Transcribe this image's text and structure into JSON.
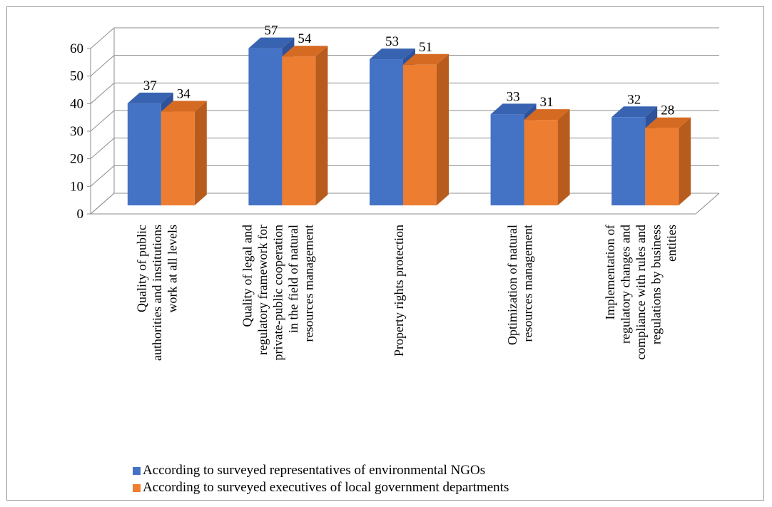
{
  "chart_data": {
    "type": "bar",
    "categories": [
      "Quality of public authorities and institutions work at all levels",
      "Quality of legal and regulatory framework for private-public cooperation in the field of natural resources management",
      "Property rights protection",
      "Optimization of natural resources management",
      "Implementation of regulatory changes and compliance with rules and regulations by business entities"
    ],
    "category_lines": [
      [
        "Quality of public",
        "authorities and institutions",
        "work at all levels"
      ],
      [
        "Quality of legal and",
        "regulatory framework for",
        "private-public cooperation",
        "in the field of natural",
        "resources management"
      ],
      [
        "Property rights protection"
      ],
      [
        "Optimization of natural",
        "resources management"
      ],
      [
        "Implementation of",
        "regulatory changes and",
        "compliance with rules and",
        "regulations by business",
        "entities"
      ]
    ],
    "series": [
      {
        "name": "According to surveyed representatives of environmental NGOs",
        "values": [
          37,
          57,
          53,
          33,
          32
        ]
      },
      {
        "name": "According to surveyed executives of local government departments",
        "values": [
          34,
          54,
          51,
          31,
          28
        ]
      }
    ],
    "y_ticks": [
      "0",
      "10",
      "20",
      "30",
      "40",
      "50",
      "60"
    ],
    "ylim": [
      0,
      60
    ],
    "grid": true,
    "style": "3d-column",
    "legend_position": "bottom",
    "colors": {
      "series1_front": "#4472c4",
      "series1_side": "#2f539a",
      "series1_top": "#3863b0",
      "series2_front": "#ed7d31",
      "series2_side": "#b85c1e",
      "series2_top": "#d56a22"
    }
  }
}
